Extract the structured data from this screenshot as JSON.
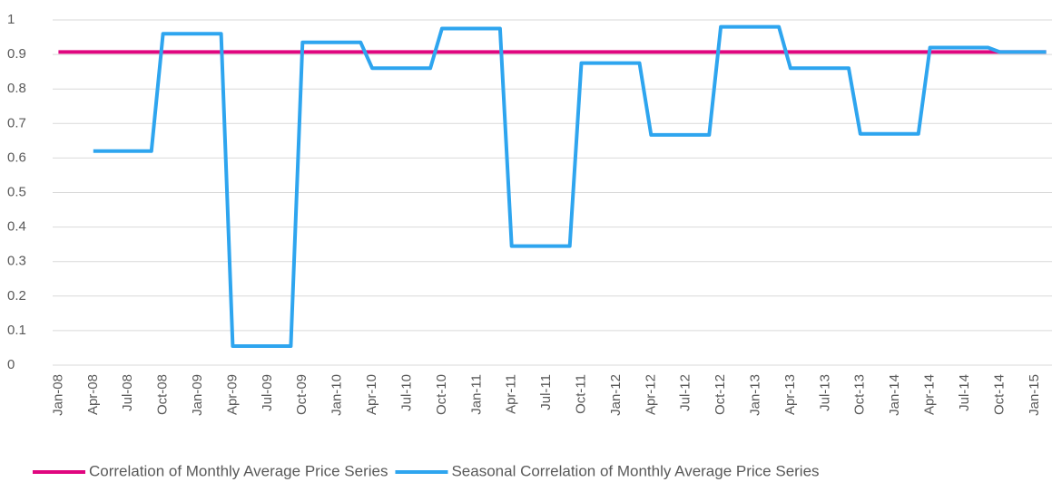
{
  "chart_data": {
    "type": "line",
    "categories": [
      "Jan-08",
      null,
      null,
      "Apr-08",
      null,
      null,
      "Jul-08",
      null,
      null,
      "Oct-08",
      null,
      null,
      "Jan-09",
      null,
      null,
      "Apr-09",
      null,
      null,
      "Jul-09",
      null,
      null,
      "Oct-09",
      null,
      null,
      "Jan-10",
      null,
      null,
      "Apr-10",
      null,
      null,
      "Jul-10",
      null,
      null,
      "Oct-10",
      null,
      null,
      "Jan-11",
      null,
      null,
      "Apr-11",
      null,
      null,
      "Jul-11",
      null,
      null,
      "Oct-11",
      null,
      null,
      "Jan-12",
      null,
      null,
      "Apr-12",
      null,
      null,
      "Jul-12",
      null,
      null,
      "Oct-12",
      null,
      null,
      "Jan-13",
      null,
      null,
      "Apr-13",
      null,
      null,
      "Jul-13",
      null,
      null,
      "Oct-13",
      null,
      null,
      "Jan-14",
      null,
      null,
      "Apr-14",
      null,
      null,
      "Jul-14",
      null,
      null,
      "Oct-14",
      null,
      null,
      "Jan-15",
      null
    ],
    "series": [
      {
        "name": "Correlation of Monthly Average Price Series",
        "color": "#e0067f",
        "values": [
          0.907,
          0.907,
          0.907,
          0.907,
          0.907,
          0.907,
          0.907,
          0.907,
          0.907,
          0.907,
          0.907,
          0.907,
          0.907,
          0.907,
          0.907,
          0.907,
          0.907,
          0.907,
          0.907,
          0.907,
          0.907,
          0.907,
          0.907,
          0.907,
          0.907,
          0.907,
          0.907,
          0.907,
          0.907,
          0.907,
          0.907,
          0.907,
          0.907,
          0.907,
          0.907,
          0.907,
          0.907,
          0.907,
          0.907,
          0.907,
          0.907,
          0.907,
          0.907,
          0.907,
          0.907,
          0.907,
          0.907,
          0.907,
          0.907,
          0.907,
          0.907,
          0.907,
          0.907,
          0.907,
          0.907,
          0.907,
          0.907,
          0.907,
          0.907,
          0.907,
          0.907,
          0.907,
          0.907,
          0.907,
          0.907,
          0.907,
          0.907,
          0.907,
          0.907,
          0.907,
          0.907,
          0.907,
          0.907,
          0.907,
          0.907,
          0.907,
          0.907,
          0.907,
          0.907,
          0.907,
          0.907,
          0.907,
          0.907,
          0.907,
          0.907,
          0.907
        ]
      },
      {
        "name": "Seasonal Correlation of Monthly Average Price Series",
        "color": "#2ea5ef",
        "values": [
          null,
          null,
          null,
          0.62,
          0.62,
          0.62,
          0.62,
          0.62,
          0.62,
          0.96,
          0.96,
          0.96,
          0.96,
          0.96,
          0.96,
          0.055,
          0.055,
          0.055,
          0.055,
          0.055,
          0.055,
          0.935,
          0.935,
          0.935,
          0.935,
          0.935,
          0.935,
          0.86,
          0.86,
          0.86,
          0.86,
          0.86,
          0.86,
          0.975,
          0.975,
          0.975,
          0.975,
          0.975,
          0.975,
          0.345,
          0.345,
          0.345,
          0.345,
          0.345,
          0.345,
          0.875,
          0.875,
          0.875,
          0.875,
          0.875,
          0.875,
          0.667,
          0.667,
          0.667,
          0.667,
          0.667,
          0.667,
          0.98,
          0.98,
          0.98,
          0.98,
          0.98,
          0.98,
          0.86,
          0.86,
          0.86,
          0.86,
          0.86,
          0.86,
          0.67,
          0.67,
          0.67,
          0.67,
          0.67,
          0.67,
          0.92,
          0.92,
          0.92,
          0.92,
          0.92,
          0.92,
          0.907,
          0.907,
          0.907,
          0.907,
          0.907
        ]
      }
    ],
    "ylim": [
      0,
      1
    ],
    "yticks": [
      0,
      0.1,
      0.2,
      0.3,
      0.4,
      0.5,
      0.6,
      0.7,
      0.8,
      0.9,
      1
    ],
    "grid": true,
    "legend": "bottom"
  }
}
